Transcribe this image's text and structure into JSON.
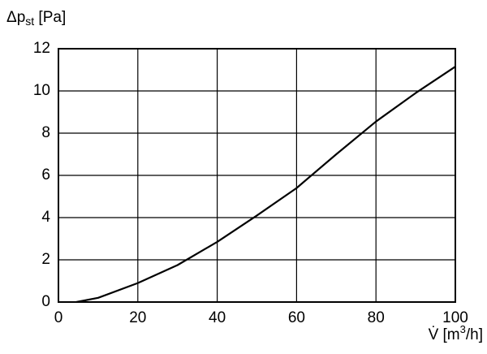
{
  "chart_data": {
    "type": "line",
    "y_label": [
      "Δp",
      "st",
      " [Pa]"
    ],
    "x_label": [
      "V̇ [m",
      "3",
      "/h]"
    ],
    "series": [
      {
        "color": "#000000",
        "x": [
          4.5,
          10,
          20,
          30,
          40,
          50,
          60,
          70,
          80,
          90,
          100
        ],
        "values": [
          0,
          0.2,
          0.9,
          1.75,
          2.85,
          4.1,
          5.4,
          7.0,
          8.55,
          9.9,
          11.15
        ]
      }
    ],
    "xlim": [
      0,
      100
    ],
    "xticks": [
      0,
      20,
      40,
      60,
      80,
      100
    ],
    "ylim": [
      0,
      12
    ],
    "yticks": [
      0,
      2,
      4,
      6,
      8,
      10,
      12
    ],
    "grid": true
  }
}
